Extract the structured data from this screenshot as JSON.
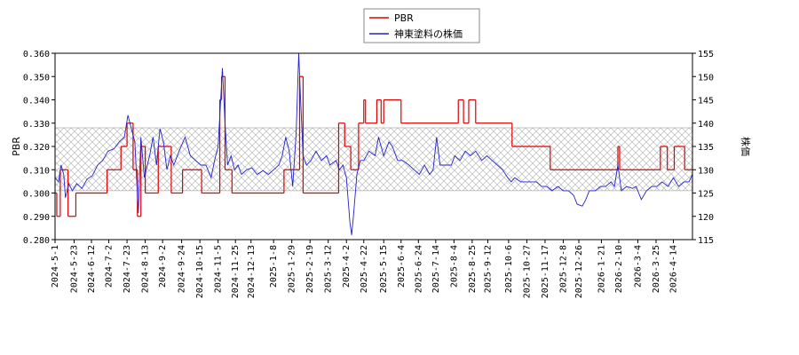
{
  "chart_data": {
    "type": "line",
    "y_label": "PBR",
    "y2_label": "株価",
    "xlim": [
      "2024-5-1",
      "2026-5-6"
    ],
    "xticks": [
      "2024-5-1",
      "2024-5-23",
      "2024-6-12",
      "2024-7-2",
      "2024-7-23",
      "2024-8-13",
      "2024-9-2",
      "2024-9-24",
      "2024-10-15",
      "2024-11-5",
      "2024-11-25",
      "2024-12-13",
      "2025-1-8",
      "2025-1-29",
      "2025-2-19",
      "2025-3-12",
      "2025-4-2",
      "2025-4-22",
      "2025-5-15",
      "2025-6-4",
      "2025-6-24",
      "2025-7-14",
      "2025-8-4",
      "2025-8-25",
      "2025-9-12",
      "2025-10-6",
      "2025-10-27",
      "2025-11-17",
      "2025-12-8",
      "2025-12-26",
      "2026-1-21",
      "2026-2-10",
      "2026-3-4",
      "2026-3-25",
      "2026-4-14"
    ],
    "ylim": [
      0.28,
      0.36
    ],
    "yticks": [
      {
        "value": 0.28,
        "label": "0.280"
      },
      {
        "value": 0.29,
        "label": "0.290"
      },
      {
        "value": 0.3,
        "label": "0.300"
      },
      {
        "value": 0.31,
        "label": "0.310"
      },
      {
        "value": 0.32,
        "label": "0.320"
      },
      {
        "value": 0.33,
        "label": "0.330"
      },
      {
        "value": 0.34,
        "label": "0.340"
      },
      {
        "value": 0.35,
        "label": "0.350"
      },
      {
        "value": 0.36,
        "label": "0.360"
      }
    ],
    "y2lim": [
      115,
      155
    ],
    "y2ticks": [
      115,
      120,
      125,
      130,
      135,
      140,
      145,
      150,
      155
    ],
    "shaded_range": [
      0.301,
      0.328
    ],
    "legend": "upper center",
    "series": [
      {
        "name": "PBR",
        "color": "#dd0000",
        "drawstyle": "steps-post",
        "x": [
          "2024-5-1",
          "2024-5-3",
          "2024-5-7",
          "2024-5-16",
          "2024-5-25",
          "2024-6-30",
          "2024-7-16",
          "2024-7-23",
          "2024-7-30",
          "2024-8-4",
          "2024-8-8",
          "2024-8-13",
          "2024-8-28",
          "2024-9-12",
          "2024-9-25",
          "2024-10-17",
          "2024-11-7",
          "2024-11-9",
          "2024-11-13",
          "2024-11-21",
          "2025-1-20",
          "2025-2-7",
          "2025-2-11",
          "2025-3-24",
          "2025-3-31",
          "2025-4-7",
          "2025-4-16",
          "2025-4-22",
          "2025-4-24",
          "2025-5-7",
          "2025-5-12",
          "2025-5-15",
          "2025-6-4",
          "2025-8-9",
          "2025-8-15",
          "2025-8-21",
          "2025-8-29",
          "2025-10-10",
          "2025-11-23",
          "2026-2-9",
          "2026-2-11",
          "2026-3-30",
          "2026-4-7",
          "2026-4-15",
          "2026-4-27",
          "2026-5-6"
        ],
        "values": [
          0.3,
          0.29,
          0.31,
          0.29,
          0.3,
          0.31,
          0.32,
          0.33,
          0.31,
          0.29,
          0.32,
          0.3,
          0.32,
          0.3,
          0.31,
          0.3,
          0.34,
          0.35,
          0.31,
          0.3,
          0.31,
          0.35,
          0.3,
          0.33,
          0.32,
          0.31,
          0.33,
          0.34,
          0.33,
          0.34,
          0.33,
          0.34,
          0.33,
          0.34,
          0.33,
          0.34,
          0.33,
          0.32,
          0.31,
          0.32,
          0.31,
          0.32,
          0.31,
          0.32,
          0.31,
          0.31
        ]
      },
      {
        "name": "神東塗料の株価",
        "color": "#2222cc",
        "axis": "y2",
        "x": [
          "2024-5-1",
          "2024-5-5",
          "2024-5-8",
          "2024-5-11",
          "2024-5-13",
          "2024-5-17",
          "2024-5-21",
          "2024-5-26",
          "2024-6-1",
          "2024-6-7",
          "2024-6-13",
          "2024-6-19",
          "2024-6-25",
          "2024-7-1",
          "2024-7-8",
          "2024-7-14",
          "2024-7-20",
          "2024-7-24",
          "2024-7-28",
          "2024-8-1",
          "2024-8-5",
          "2024-8-8",
          "2024-8-12",
          "2024-8-18",
          "2024-8-22",
          "2024-8-26",
          "2024-8-30",
          "2024-9-3",
          "2024-9-7",
          "2024-9-11",
          "2024-9-15",
          "2024-9-21",
          "2024-9-28",
          "2024-10-4",
          "2024-10-10",
          "2024-10-16",
          "2024-10-22",
          "2024-10-28",
          "2024-11-1",
          "2024-11-5",
          "2024-11-10",
          "2024-11-13",
          "2024-11-16",
          "2024-11-20",
          "2024-11-24",
          "2024-11-28",
          "2024-12-2",
          "2024-12-8",
          "2024-12-14",
          "2024-12-20",
          "2024-12-27",
          "2025-1-2",
          "2025-1-8",
          "2025-1-14",
          "2025-1-18",
          "2025-1-22",
          "2025-1-26",
          "2025-1-30",
          "2025-2-3",
          "2025-2-6",
          "2025-2-8",
          "2025-2-11",
          "2025-2-15",
          "2025-2-20",
          "2025-2-26",
          "2025-3-4",
          "2025-3-10",
          "2025-3-14",
          "2025-3-21",
          "2025-3-25",
          "2025-3-29",
          "2025-4-2",
          "2025-4-6",
          "2025-4-8",
          "2025-4-10",
          "2025-4-14",
          "2025-4-18",
          "2025-4-22",
          "2025-4-28",
          "2025-5-5",
          "2025-5-9",
          "2025-5-15",
          "2025-5-21",
          "2025-5-25",
          "2025-5-31",
          "2025-6-6",
          "2025-6-13",
          "2025-6-19",
          "2025-6-25",
          "2025-7-1",
          "2025-7-7",
          "2025-7-11",
          "2025-7-15",
          "2025-7-19",
          "2025-7-26",
          "2025-8-1",
          "2025-8-5",
          "2025-8-11",
          "2025-8-17",
          "2025-8-23",
          "2025-8-29",
          "2025-9-5",
          "2025-9-11",
          "2025-9-17",
          "2025-9-23",
          "2025-9-29",
          "2025-10-5",
          "2025-10-9",
          "2025-10-13",
          "2025-10-20",
          "2025-10-26",
          "2025-11-1",
          "2025-11-7",
          "2025-11-13",
          "2025-11-19",
          "2025-11-25",
          "2025-12-2",
          "2025-12-8",
          "2025-12-14",
          "2025-12-20",
          "2025-12-24",
          "2025-12-30",
          "2026-1-3",
          "2026-1-7",
          "2026-1-14",
          "2026-1-20",
          "2026-1-26",
          "2026-2-1",
          "2026-2-5",
          "2026-2-9",
          "2026-2-13",
          "2026-2-19",
          "2026-2-26",
          "2026-3-2",
          "2026-3-8",
          "2026-3-14",
          "2026-3-20",
          "2026-3-26",
          "2026-4-1",
          "2026-4-8",
          "2026-4-14",
          "2026-4-20",
          "2026-4-26",
          "2026-5-2",
          "2026-5-6"
        ],
        "values": [
          128.3,
          127.4,
          131,
          129,
          124,
          127,
          125.5,
          127,
          126,
          128,
          128.7,
          131,
          132,
          134,
          134.5,
          136,
          137,
          141.7,
          138.8,
          136,
          120.7,
          137,
          128.3,
          133,
          137,
          131,
          138.8,
          136,
          130,
          133,
          131,
          134,
          137,
          133,
          132,
          131,
          131,
          128.3,
          132,
          135,
          151.8,
          139.8,
          131,
          133,
          130,
          131,
          129,
          130,
          130.4,
          129,
          129.8,
          129,
          130,
          131,
          133,
          137,
          134,
          126.4,
          137.9,
          155,
          145.5,
          133,
          131,
          132,
          134,
          132,
          133,
          131,
          132,
          130,
          131,
          128.3,
          118.8,
          116,
          119.8,
          129,
          132,
          132,
          134,
          133,
          137,
          133,
          136,
          135,
          132,
          132,
          131,
          130,
          129,
          131,
          129,
          130,
          137,
          131,
          131,
          131,
          133,
          132,
          134,
          133,
          134,
          132,
          133,
          132,
          131,
          130,
          128.3,
          127.4,
          128.3,
          127.4,
          127.4,
          127.4,
          127.4,
          126.4,
          126.4,
          125.5,
          126.4,
          125.5,
          125.5,
          124.5,
          122.6,
          122.2,
          123.6,
          125.5,
          125.5,
          126.4,
          126.4,
          127.4,
          126.4,
          131,
          125.5,
          126.4,
          126,
          126.4,
          123.6,
          125.5,
          126.4,
          126.4,
          127.4,
          126.4,
          128.3,
          126.4,
          127.4,
          127.4,
          129
        ]
      }
    ]
  }
}
